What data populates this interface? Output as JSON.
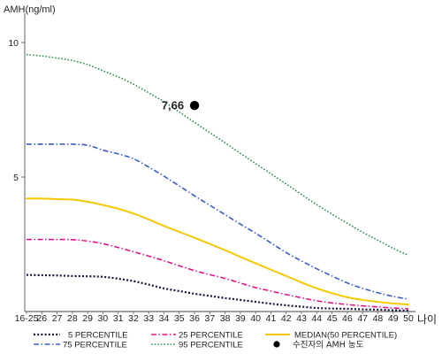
{
  "chart_data": {
    "type": "line",
    "ylabel": "AMH(ng/ml)",
    "xlabel": "나이",
    "categories": [
      "16-25",
      "26",
      "27",
      "28",
      "29",
      "30",
      "31",
      "32",
      "33",
      "34",
      "35",
      "36",
      "37",
      "38",
      "39",
      "40",
      "41",
      "42",
      "43",
      "44",
      "45",
      "46",
      "47",
      "48",
      "49",
      "50"
    ],
    "yticks": [
      5,
      10
    ],
    "ylim": [
      0,
      11.1
    ],
    "grid": false,
    "legend_position": "bottom",
    "series": [
      {
        "name": "5 PERCENTILE",
        "color": "#14143a",
        "values": [
          1.36,
          1.35,
          1.34,
          1.32,
          1.31,
          1.29,
          1.22,
          1.13,
          1.0,
          0.86,
          0.76,
          0.66,
          0.58,
          0.5,
          0.43,
          0.36,
          0.29,
          0.23,
          0.18,
          0.13,
          0.11,
          0.1,
          0.08,
          0.07,
          0.05,
          0.03
        ]
      },
      {
        "name": "25 PERCENTILE",
        "color": "#e0158a",
        "values": [
          2.68,
          2.68,
          2.68,
          2.67,
          2.62,
          2.52,
          2.38,
          2.22,
          2.06,
          1.89,
          1.7,
          1.52,
          1.37,
          1.23,
          1.06,
          0.89,
          0.76,
          0.63,
          0.51,
          0.4,
          0.32,
          0.26,
          0.21,
          0.17,
          0.13,
          0.1
        ]
      },
      {
        "name": "MEDIAN(50 PERCENTILE)",
        "color": "#f5c800",
        "values": [
          4.2,
          4.2,
          4.18,
          4.16,
          4.08,
          3.96,
          3.82,
          3.64,
          3.42,
          3.18,
          2.96,
          2.74,
          2.51,
          2.28,
          2.03,
          1.79,
          1.55,
          1.32,
          1.08,
          0.86,
          0.68,
          0.53,
          0.43,
          0.36,
          0.3,
          0.26
        ]
      },
      {
        "name": "75 PERCENTILE",
        "color": "#3b5bc9",
        "values": [
          6.22,
          6.22,
          6.22,
          6.22,
          6.18,
          6.0,
          5.86,
          5.68,
          5.37,
          5.03,
          4.67,
          4.3,
          3.95,
          3.6,
          3.25,
          2.91,
          2.55,
          2.19,
          1.88,
          1.59,
          1.32,
          1.06,
          0.86,
          0.7,
          0.56,
          0.46
        ]
      },
      {
        "name": "95 PERCENTILE",
        "color": "#2f8f4f",
        "values": [
          9.55,
          9.5,
          9.42,
          9.33,
          9.18,
          8.95,
          8.72,
          8.45,
          8.13,
          7.8,
          7.42,
          7.03,
          6.65,
          6.27,
          5.88,
          5.5,
          5.12,
          4.74,
          4.35,
          3.97,
          3.62,
          3.28,
          2.95,
          2.65,
          2.35,
          2.09
        ]
      }
    ],
    "points": [
      {
        "name": "수진자의 AMH 농도",
        "x": "36",
        "y": 7.66,
        "label": "7,66",
        "color": "#000000"
      }
    ]
  }
}
